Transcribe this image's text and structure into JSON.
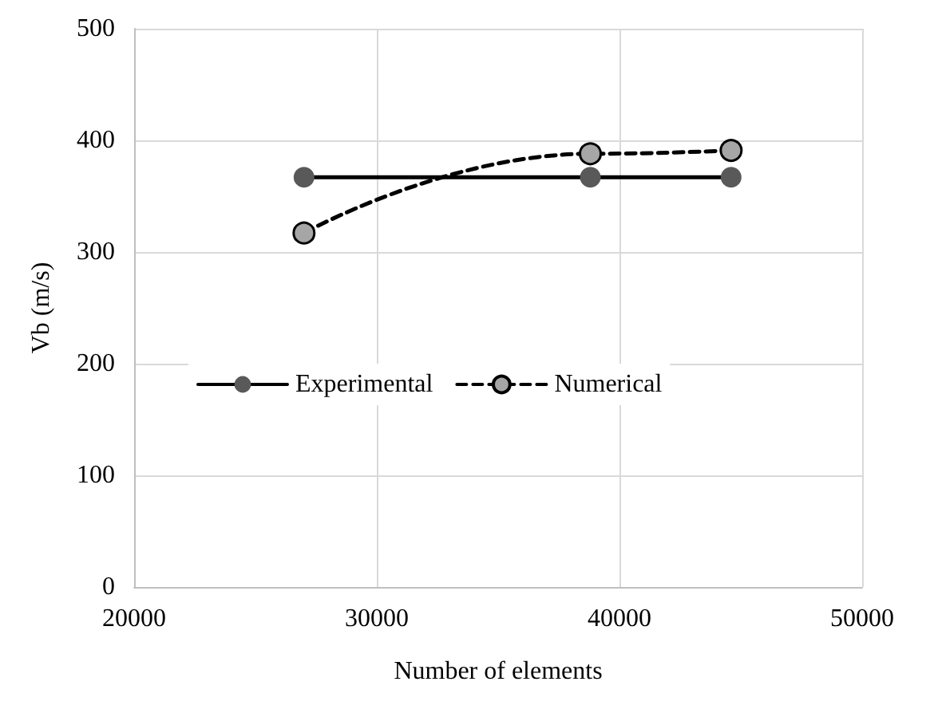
{
  "chart_data": {
    "type": "line",
    "xlabel": "Number of elements",
    "ylabel": "Vb (m/s)",
    "x": [
      27000,
      38800,
      44600
    ],
    "series": [
      {
        "name": "Experimental",
        "color": "#595959",
        "values": [
          367,
          367,
          367
        ],
        "line_style": "solid"
      },
      {
        "name": "Numerical",
        "color": "#a6a6a6",
        "values": [
          317,
          388,
          391
        ],
        "line_style": "dashed"
      }
    ],
    "xlim": [
      20000,
      50000
    ],
    "xticks": [
      20000,
      30000,
      40000,
      50000
    ],
    "ylim": [
      0,
      500
    ],
    "yticks": [
      0,
      100,
      200,
      300,
      400,
      500
    ],
    "grid": true,
    "legend": "left",
    "marker": "circle"
  }
}
